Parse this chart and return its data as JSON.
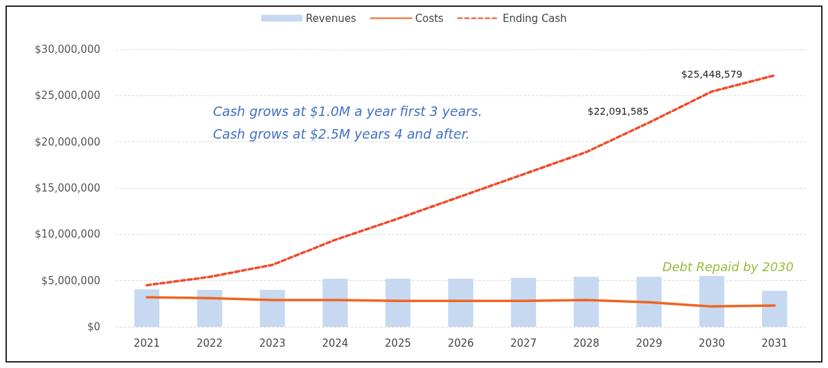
{
  "chart_data": {
    "type": "bar",
    "categories": [
      "2021",
      "2022",
      "2023",
      "2024",
      "2025",
      "2026",
      "2027",
      "2028",
      "2029",
      "2030",
      "2031"
    ],
    "series": [
      {
        "name": "Revenues",
        "color": "#c6d9f1",
        "values": [
          4050000.0,
          4000000.0,
          4000000.0,
          5200000.0,
          5200000.0,
          5200000.0,
          5300000.0,
          5400000.0,
          5400000.0,
          5500000.0,
          3900000.0
        ]
      },
      {
        "name": "Costs",
        "type": "line",
        "color": "#f0641e",
        "line_style": "solid",
        "values": [
          3200000.0,
          3100000.0,
          2900000.0,
          2900000.0,
          2800000.0,
          2800000.0,
          2800000.0,
          2900000.0,
          2650000.0,
          2200000.0,
          2300000.0
        ]
      },
      {
        "name": "Ending Cash",
        "type": "line",
        "color": "#f04a2a",
        "line_style": "dashed",
        "values": [
          4500000.0,
          5400000.0,
          6700000.0,
          9400000.0,
          11700000.0,
          14100000.0,
          16500000.0,
          18900000.0,
          22091585,
          25448579,
          27200000.0
        ],
        "value_labels": [
          null,
          null,
          null,
          null,
          null,
          null,
          null,
          null,
          "$22,091,585",
          "$25,448,579",
          null
        ]
      }
    ],
    "ylim": [
      0,
      30000000
    ],
    "yticks": [
      {
        "value": 0,
        "label": "$0"
      },
      {
        "value": 5000000,
        "label": "$5,000,000"
      },
      {
        "value": 10000000,
        "label": "$10,000,000"
      },
      {
        "value": 15000000,
        "label": "$15,000,000"
      },
      {
        "value": 20000000,
        "label": "$20,000,000"
      },
      {
        "value": 25000000,
        "label": "$25,000,000"
      },
      {
        "value": 30000000,
        "label": "$30,000,000"
      }
    ],
    "grid": "y",
    "legend": "top",
    "marker": "none",
    "annotations": [
      "Cash grows at $1.0M a year first 3 years.\nCash grows at $2.5M years 4 and after.",
      "Debt Repaid by 2030"
    ]
  }
}
